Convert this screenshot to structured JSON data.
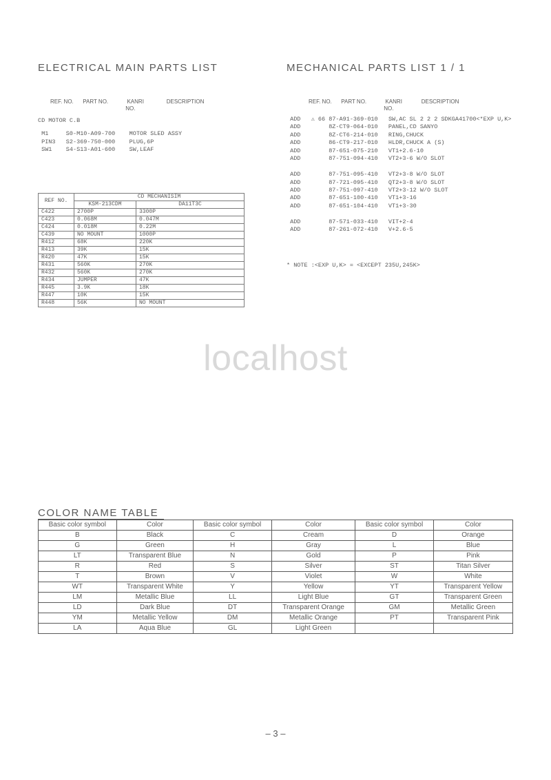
{
  "left": {
    "title": "ELECTRICAL  MAIN  PARTS  LIST",
    "headers": {
      "ref": "REF. NO.",
      "part": "PART NO.",
      "kanri": "KANRI",
      "kanri2": "NO.",
      "desc": "DESCRIPTION"
    },
    "section_label": "CD MOTOR C.B",
    "parts": [
      {
        "ref": "M1",
        "part": "S0-M10-A09-700",
        "desc": "MOTOR SLED ASSY"
      },
      {
        "ref": "PIN3",
        "part": "S2-369-750-000",
        "desc": "PLUG,6P"
      },
      {
        "ref": "SW1",
        "part": "S4-S13-A01-600",
        "desc": "SW,LEAF"
      }
    ],
    "mech_table": {
      "ref_header": "REF NO.",
      "group_header": "CD MECHANISIM",
      "subheaders": [
        "KSM-213CDM",
        "DA11T3C"
      ],
      "rows": [
        {
          "ref": "C422",
          "a": "2700P",
          "b": "3300P"
        },
        {
          "ref": "C423",
          "a": "0.068M",
          "b": "0.047M"
        },
        {
          "ref": "C424",
          "a": "0.018M",
          "b": "0.22M"
        },
        {
          "ref": "C439",
          "a": "NO MOUNT",
          "b": "1000P"
        },
        {
          "ref": "R412",
          "a": "68K",
          "b": "220K"
        },
        {
          "ref": "R413",
          "a": "39K",
          "b": "15K"
        },
        {
          "ref": "R420",
          "a": "47K",
          "b": "15K"
        },
        {
          "ref": "R431",
          "a": "560K",
          "b": "270K"
        },
        {
          "ref": "R432",
          "a": "560K",
          "b": "270K"
        },
        {
          "ref": "R434",
          "a": "JUMPER",
          "b": "47K"
        },
        {
          "ref": "R445",
          "a": "3.9K",
          "b": "18K"
        },
        {
          "ref": "R447",
          "a": "10K",
          "b": "15K"
        },
        {
          "ref": "R448",
          "a": "56K",
          "b": "NO MOUNT"
        }
      ]
    }
  },
  "right": {
    "title": "MECHANICAL  PARTS  LIST  1 / 1",
    "headers": {
      "ref": "REF. NO.",
      "part": "PART NO.",
      "kanri": "KANRI",
      "kanri2": "NO.",
      "desc": "DESCRIPTION"
    },
    "rows": [
      {
        "add": "ADD",
        "warn": true,
        "num": "66",
        "part": "87-A91-369-010",
        "desc": "SW,AC SL 2 2 2 SDKGA41700<*EXP U,K>"
      },
      {
        "add": "ADD",
        "warn": false,
        "num": "",
        "part": "8Z-CT9-064-010",
        "desc": "PANEL,CD SANYO"
      },
      {
        "add": "ADD",
        "warn": false,
        "num": "",
        "part": "8Z-CT6-214-010",
        "desc": "RING,CHUCK"
      },
      {
        "add": "ADD",
        "warn": false,
        "num": "",
        "part": "86-CT9-217-010",
        "desc": "HLDR,CHUCK A (S)"
      },
      {
        "add": "ADD",
        "warn": false,
        "num": "",
        "part": "87-651-075-210",
        "desc": "VT1+2.6-10"
      },
      {
        "add": "ADD",
        "warn": false,
        "num": "",
        "part": "87-751-094-410",
        "desc": "VT2+3-6 W/O SLOT"
      },
      {
        "blank": true
      },
      {
        "add": "ADD",
        "warn": false,
        "num": "",
        "part": "87-751-095-410",
        "desc": "VT2+3-8 W/O SLOT"
      },
      {
        "add": "ADD",
        "warn": false,
        "num": "",
        "part": "87-721-095-410",
        "desc": "QT2+3-8 W/O SLOT"
      },
      {
        "add": "ADD",
        "warn": false,
        "num": "",
        "part": "87-751-097-410",
        "desc": "VT2+3-12 W/O SLOT"
      },
      {
        "add": "ADD",
        "warn": false,
        "num": "",
        "part": "87-651-100-410",
        "desc": "VT1+3-16"
      },
      {
        "add": "ADD",
        "warn": false,
        "num": "",
        "part": "87-651-104-410",
        "desc": "VT1+3-30"
      },
      {
        "blank": true
      },
      {
        "add": "ADD",
        "warn": false,
        "num": "",
        "part": "87-571-033-410",
        "desc": "VIT+2-4"
      },
      {
        "add": "ADD",
        "warn": false,
        "num": "",
        "part": "87-261-072-410",
        "desc": "V+2.6-5"
      }
    ],
    "note": "* NOTE :<EXP U,K> = <EXCEPT 235U,245K>"
  },
  "watermark": "localhost",
  "color_table": {
    "title": "COLOR  NAME  TABLE",
    "headers": [
      "Basic color symbol",
      "Color",
      "Basic color symbol",
      "Color",
      "Basic color symbol",
      "Color"
    ],
    "rows": [
      [
        "B",
        "Black",
        "C",
        "Cream",
        "D",
        "Orange"
      ],
      [
        "G",
        "Green",
        "H",
        "Gray",
        "L",
        "Blue"
      ],
      [
        "LT",
        "Transparent Blue",
        "N",
        "Gold",
        "P",
        "Pink"
      ],
      [
        "R",
        "Red",
        "S",
        "Silver",
        "ST",
        "Titan Silver"
      ],
      [
        "T",
        "Brown",
        "V",
        "Violet",
        "W",
        "White"
      ],
      [
        "WT",
        "Transparent White",
        "Y",
        "Yellow",
        "YT",
        "Transparent Yellow"
      ],
      [
        "LM",
        "Metallic Blue",
        "LL",
        "Light Blue",
        "GT",
        "Transparent Green"
      ],
      [
        "LD",
        "Dark Blue",
        "DT",
        "Transparent Orange",
        "GM",
        "Metallic Green"
      ],
      [
        "YM",
        "Metallic Yellow",
        "DM",
        "Metallic Orange",
        "PT",
        "Transparent Pink"
      ],
      [
        "LA",
        "Aqua Blue",
        "GL",
        "Light Green",
        "",
        ""
      ]
    ]
  },
  "page_number": "– 3 –"
}
